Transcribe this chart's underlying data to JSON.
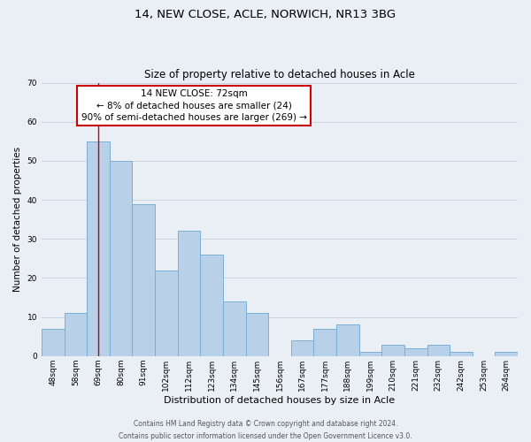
{
  "title": "14, NEW CLOSE, ACLE, NORWICH, NR13 3BG",
  "subtitle": "Size of property relative to detached houses in Acle",
  "xlabel": "Distribution of detached houses by size in Acle",
  "ylabel": "Number of detached properties",
  "bar_labels": [
    "48sqm",
    "58sqm",
    "69sqm",
    "80sqm",
    "91sqm",
    "102sqm",
    "112sqm",
    "123sqm",
    "134sqm",
    "145sqm",
    "156sqm",
    "167sqm",
    "177sqm",
    "188sqm",
    "199sqm",
    "210sqm",
    "221sqm",
    "232sqm",
    "242sqm",
    "253sqm",
    "264sqm"
  ],
  "bar_values": [
    7,
    11,
    55,
    50,
    39,
    22,
    32,
    26,
    14,
    11,
    0,
    4,
    7,
    8,
    1,
    3,
    2,
    3,
    1,
    0,
    1
  ],
  "bar_color": "#b8d0e8",
  "bar_edge_color": "#7aafd4",
  "highlight_index": 2,
  "highlight_line_color": "#cc0000",
  "ylim": [
    0,
    70
  ],
  "yticks": [
    0,
    10,
    20,
    30,
    40,
    50,
    60,
    70
  ],
  "grid_color": "#c8d4e4",
  "bg_color": "#eaeff6",
  "annotation_title": "14 NEW CLOSE: 72sqm",
  "annotation_line1": "← 8% of detached houses are smaller (24)",
  "annotation_line2": "90% of semi-detached houses are larger (269) →",
  "annotation_box_color": "#ffffff",
  "annotation_border_color": "#cc0000",
  "footer_line1": "Contains HM Land Registry data © Crown copyright and database right 2024.",
  "footer_line2": "Contains public sector information licensed under the Open Government Licence v3.0.",
  "title_fontsize": 9.5,
  "subtitle_fontsize": 8.5,
  "ylabel_fontsize": 7.5,
  "xlabel_fontsize": 8.0,
  "tick_fontsize": 6.5,
  "annotation_fontsize": 7.5,
  "footer_fontsize": 5.5
}
